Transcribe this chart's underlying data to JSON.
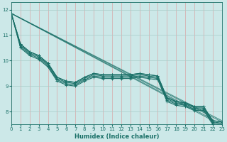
{
  "xlabel": "Humidex (Indice chaleur)",
  "xlim": [
    0,
    23
  ],
  "ylim": [
    7.5,
    12.3
  ],
  "yticks": [
    8,
    9,
    10,
    11,
    12
  ],
  "xticks": [
    0,
    1,
    2,
    3,
    4,
    5,
    6,
    7,
    8,
    9,
    10,
    11,
    12,
    13,
    14,
    15,
    16,
    17,
    18,
    19,
    20,
    21,
    22,
    23
  ],
  "bg_color": "#cce8e8",
  "vgrid_color": "#d8a8a8",
  "hgrid_color": "#a8ccc8",
  "line_color": "#1a7068",
  "lines": [
    [
      11.85,
      10.65,
      10.35,
      10.2,
      9.9,
      9.35,
      9.2,
      9.15,
      9.35,
      9.5,
      9.45,
      9.45,
      9.45,
      9.45,
      9.5,
      9.45,
      9.4,
      8.55,
      8.4,
      8.35,
      8.2,
      8.2,
      7.65,
      7.6
    ],
    [
      11.85,
      10.65,
      10.35,
      10.2,
      9.9,
      9.35,
      9.2,
      9.15,
      9.35,
      9.5,
      9.45,
      9.45,
      9.45,
      9.45,
      9.5,
      9.45,
      9.4,
      8.55,
      8.4,
      8.35,
      8.2,
      8.2,
      7.65,
      7.6
    ],
    [
      11.85,
      10.6,
      10.3,
      10.15,
      9.85,
      9.3,
      9.15,
      9.1,
      9.3,
      9.45,
      9.4,
      9.4,
      9.4,
      9.4,
      9.45,
      9.4,
      9.35,
      8.5,
      8.35,
      8.3,
      8.15,
      8.15,
      7.6,
      7.55
    ],
    [
      11.85,
      10.55,
      10.25,
      10.1,
      9.8,
      9.25,
      9.1,
      9.05,
      9.25,
      9.4,
      9.35,
      9.35,
      9.35,
      9.35,
      9.4,
      9.35,
      9.3,
      8.45,
      8.3,
      8.25,
      8.1,
      8.1,
      7.55,
      7.5
    ],
    [
      11.85,
      10.5,
      10.2,
      10.05,
      9.75,
      9.2,
      9.05,
      9.0,
      9.2,
      9.35,
      9.3,
      9.3,
      9.3,
      9.3,
      9.35,
      9.3,
      9.25,
      8.4,
      8.25,
      8.2,
      8.05,
      8.05,
      7.5,
      7.45
    ]
  ],
  "straight_lines": [
    [
      [
        0,
        22
      ],
      [
        11.85,
        7.65
      ]
    ],
    [
      [
        0,
        23
      ],
      [
        11.85,
        7.6
      ]
    ],
    [
      [
        0,
        22
      ],
      [
        11.85,
        7.7
      ]
    ],
    [
      [
        0,
        23
      ],
      [
        11.85,
        7.65
      ]
    ]
  ],
  "marker": "+",
  "markersize": 3,
  "linewidth": 0.8
}
